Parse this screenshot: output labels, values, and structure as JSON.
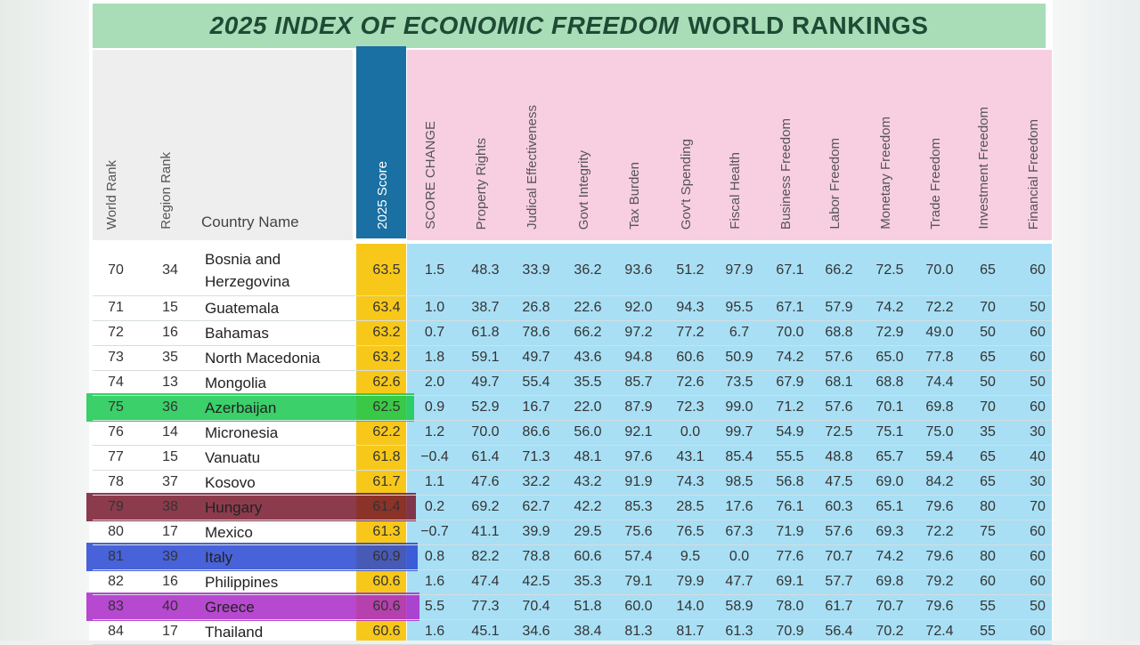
{
  "title": {
    "italic_part": "2025 INDEX OF ECONOMIC FREEDOM",
    "rest": "WORLD RANKINGS"
  },
  "headers": {
    "world_rank": "World Rank",
    "region_rank": "Region Rank",
    "country": "Country Name",
    "score": "2025 Score",
    "indicators": [
      "SCORE CHANGE",
      "Property Rights",
      "Judical Effectiveness",
      "Govt Integrity",
      "Tax Burden",
      "Gov't Spending",
      "Fiscal Health",
      "Business Freedom",
      "Labor Freedom",
      "Monetary Freedom",
      "Trade Freedom",
      "Investment Freedom",
      "Financial Freedom"
    ]
  },
  "rows": [
    {
      "world": "70",
      "region": "34",
      "country": "Bosnia and",
      "country2": "Herzegovina",
      "score": "63.5",
      "vals": [
        "1.5",
        "48.3",
        "33.9",
        "36.2",
        "93.6",
        "51.2",
        "97.9",
        "67.1",
        "66.2",
        "72.5",
        "70.0",
        "65",
        "60"
      ]
    },
    {
      "world": "71",
      "region": "15",
      "country": "Guatemala",
      "score": "63.4",
      "vals": [
        "1.0",
        "38.7",
        "26.8",
        "22.6",
        "92.0",
        "94.3",
        "95.5",
        "67.1",
        "57.9",
        "74.2",
        "72.2",
        "70",
        "50"
      ]
    },
    {
      "world": "72",
      "region": "16",
      "country": "Bahamas",
      "score": "63.2",
      "vals": [
        "0.7",
        "61.8",
        "78.6",
        "66.2",
        "97.2",
        "77.2",
        "6.7",
        "70.0",
        "68.8",
        "72.9",
        "49.0",
        "50",
        "60"
      ]
    },
    {
      "world": "73",
      "region": "35",
      "country": "North Macedonia",
      "score": "63.2",
      "vals": [
        "1.8",
        "59.1",
        "49.7",
        "43.6",
        "94.8",
        "60.6",
        "50.9",
        "74.2",
        "57.6",
        "65.0",
        "77.8",
        "65",
        "60"
      ]
    },
    {
      "world": "74",
      "region": "13",
      "country": "Mongolia",
      "score": "62.6",
      "vals": [
        "2.0",
        "49.7",
        "55.4",
        "35.5",
        "85.7",
        "72.6",
        "73.5",
        "67.9",
        "68.1",
        "68.8",
        "74.4",
        "50",
        "50"
      ]
    },
    {
      "world": "75",
      "region": "36",
      "country": "Azerbaijan",
      "score": "62.5",
      "vals": [
        "0.9",
        "52.9",
        "16.7",
        "22.0",
        "87.9",
        "72.3",
        "99.0",
        "71.2",
        "57.6",
        "70.1",
        "69.8",
        "70",
        "60"
      ],
      "highlight": "green"
    },
    {
      "world": "76",
      "region": "14",
      "country": "Micronesia",
      "score": "62.2",
      "vals": [
        "1.2",
        "70.0",
        "86.6",
        "56.0",
        "92.1",
        "0.0",
        "99.7",
        "54.9",
        "72.5",
        "75.1",
        "75.0",
        "35",
        "30"
      ]
    },
    {
      "world": "77",
      "region": "15",
      "country": "Vanuatu",
      "score": "61.8",
      "vals": [
        "−0.4",
        "61.4",
        "71.3",
        "48.1",
        "97.6",
        "43.1",
        "85.4",
        "55.5",
        "48.8",
        "65.7",
        "59.4",
        "65",
        "40"
      ]
    },
    {
      "world": "78",
      "region": "37",
      "country": "Kosovo",
      "score": "61.7",
      "vals": [
        "1.1",
        "47.6",
        "32.2",
        "43.2",
        "91.9",
        "74.3",
        "98.5",
        "56.8",
        "47.5",
        "69.0",
        "84.2",
        "65",
        "30"
      ]
    },
    {
      "world": "79",
      "region": "38",
      "country": "Hungary",
      "score": "61.4",
      "vals": [
        "0.2",
        "69.2",
        "62.7",
        "42.2",
        "85.3",
        "28.5",
        "17.6",
        "76.1",
        "60.3",
        "65.1",
        "79.6",
        "80",
        "70"
      ],
      "highlight": "maroon"
    },
    {
      "world": "80",
      "region": "17",
      "country": "Mexico",
      "score": "61.3",
      "vals": [
        "−0.7",
        "41.1",
        "39.9",
        "29.5",
        "75.6",
        "76.5",
        "67.3",
        "71.9",
        "57.6",
        "69.3",
        "72.2",
        "75",
        "60"
      ]
    },
    {
      "world": "81",
      "region": "39",
      "country": "Italy",
      "score": "60.9",
      "vals": [
        "0.8",
        "82.2",
        "78.8",
        "60.6",
        "57.4",
        "9.5",
        "0.0",
        "77.6",
        "70.7",
        "74.2",
        "79.6",
        "80",
        "60"
      ],
      "highlight": "blue"
    },
    {
      "world": "82",
      "region": "16",
      "country": "Philippines",
      "score": "60.6",
      "vals": [
        "1.6",
        "47.4",
        "42.5",
        "35.3",
        "79.1",
        "79.9",
        "47.7",
        "69.1",
        "57.7",
        "69.8",
        "79.2",
        "60",
        "60"
      ]
    },
    {
      "world": "83",
      "region": "40",
      "country": "Greece",
      "score": "60.6",
      "vals": [
        "5.5",
        "77.3",
        "70.4",
        "51.8",
        "60.0",
        "14.0",
        "58.9",
        "78.0",
        "61.7",
        "70.7",
        "79.6",
        "55",
        "50"
      ],
      "highlight": "purple"
    },
    {
      "world": "84",
      "region": "17",
      "country": "Thailand",
      "score": "60.6",
      "vals": [
        "1.6",
        "45.1",
        "34.6",
        "38.4",
        "81.3",
        "81.7",
        "61.3",
        "70.9",
        "56.4",
        "70.2",
        "72.4",
        "55",
        "60"
      ]
    }
  ]
}
